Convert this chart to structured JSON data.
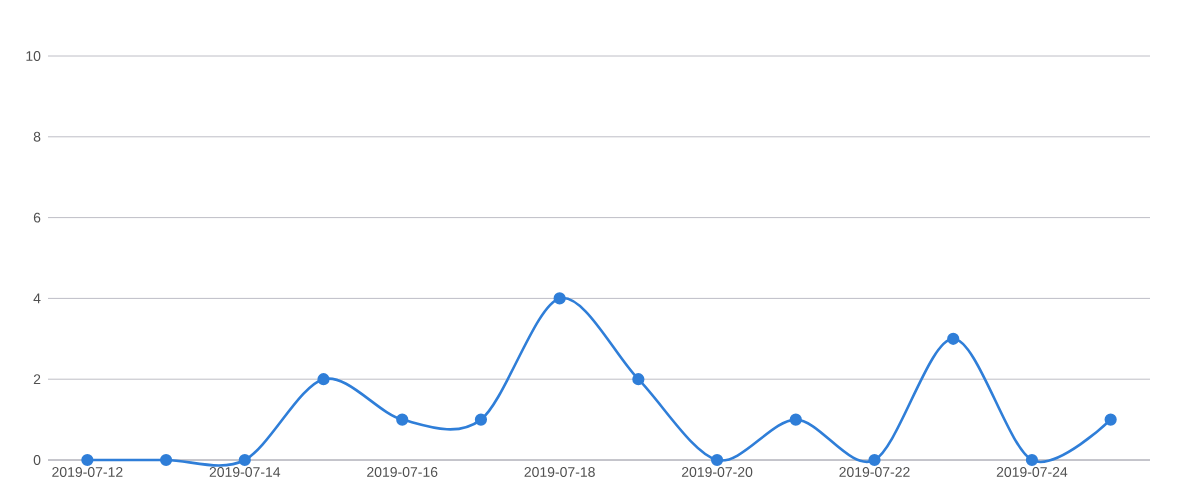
{
  "chart_data": {
    "type": "line",
    "x": [
      "2019-07-12",
      "2019-07-13",
      "2019-07-14",
      "2019-07-15",
      "2019-07-16",
      "2019-07-17",
      "2019-07-18",
      "2019-07-19",
      "2019-07-20",
      "2019-07-21",
      "2019-07-22",
      "2019-07-23",
      "2019-07-24",
      "2019-07-25"
    ],
    "series": [
      {
        "color": "#2f7ed8",
        "values": [
          0,
          0,
          0,
          2,
          1,
          1,
          4,
          2,
          0,
          1,
          0,
          3,
          0,
          1
        ]
      }
    ],
    "xlim": [
      "2019-07-11T12:00",
      "2019-07-25T12:00"
    ],
    "xticks": [
      "2019-07-12",
      "2019-07-14",
      "2019-07-16",
      "2019-07-18",
      "2019-07-20",
      "2019-07-22",
      "2019-07-24"
    ],
    "ylim": [
      0,
      10
    ],
    "yticks": [
      0,
      2,
      4,
      6,
      8,
      10
    ],
    "grid": "y",
    "marker": "circle",
    "line_style": "solid"
  }
}
